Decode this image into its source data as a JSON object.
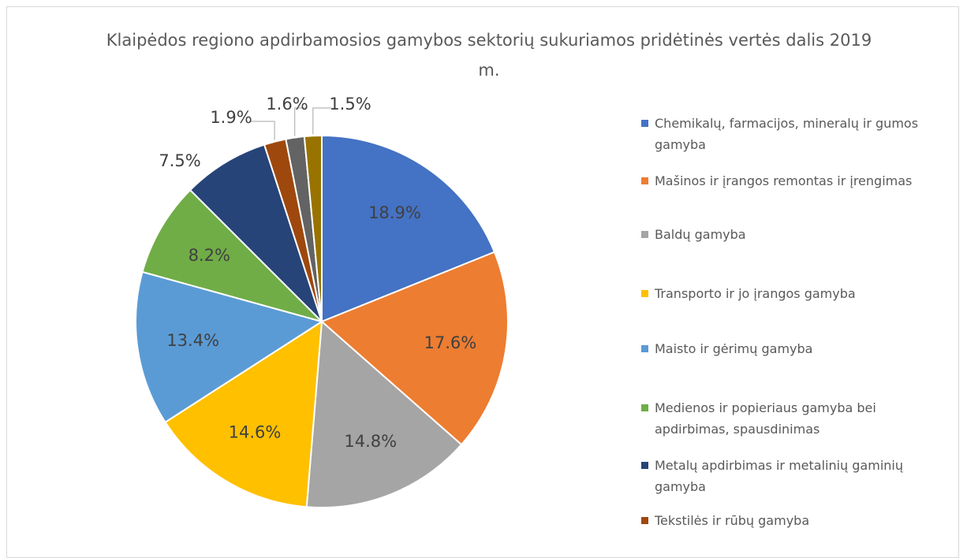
{
  "chart_data": {
    "type": "pie",
    "title": "Klaipėdos regiono apdirbamosios gamybos sektorių sukuriamos pridėtinės vertės dalis 2019 m.",
    "categories": [
      "Chemikalų, farmacijos, mineralų ir gumos gamyba",
      "Mašinos ir įrangos remontas ir įrengimas",
      "Baldų gamyba",
      "Transporto ir jo įrangos gamyba",
      "Maisto ir gėrimų gamyba",
      "Medienos ir popieriaus gamyba bei apdirbimas, spausdinimas",
      "Metalų apdirbimas ir metalinių gaminių gamyba",
      "Tekstilės ir rūbų gamyba",
      null,
      null
    ],
    "values": [
      18.9,
      17.6,
      14.8,
      14.6,
      13.4,
      8.2,
      7.5,
      1.9,
      1.6,
      1.5
    ],
    "value_labels": [
      "18.9%",
      "17.6%",
      "14.8%",
      "14.6%",
      "13.4%",
      "8.2%",
      "7.5%",
      "1.9%",
      "1.6%",
      "1.5%"
    ],
    "colors": [
      "#4472c4",
      "#ed7d31",
      "#a5a5a5",
      "#ffc000",
      "#5b9bd5",
      "#70ad47",
      "#264478",
      "#9e480e",
      "#636363",
      "#997300"
    ],
    "legend": "right"
  }
}
